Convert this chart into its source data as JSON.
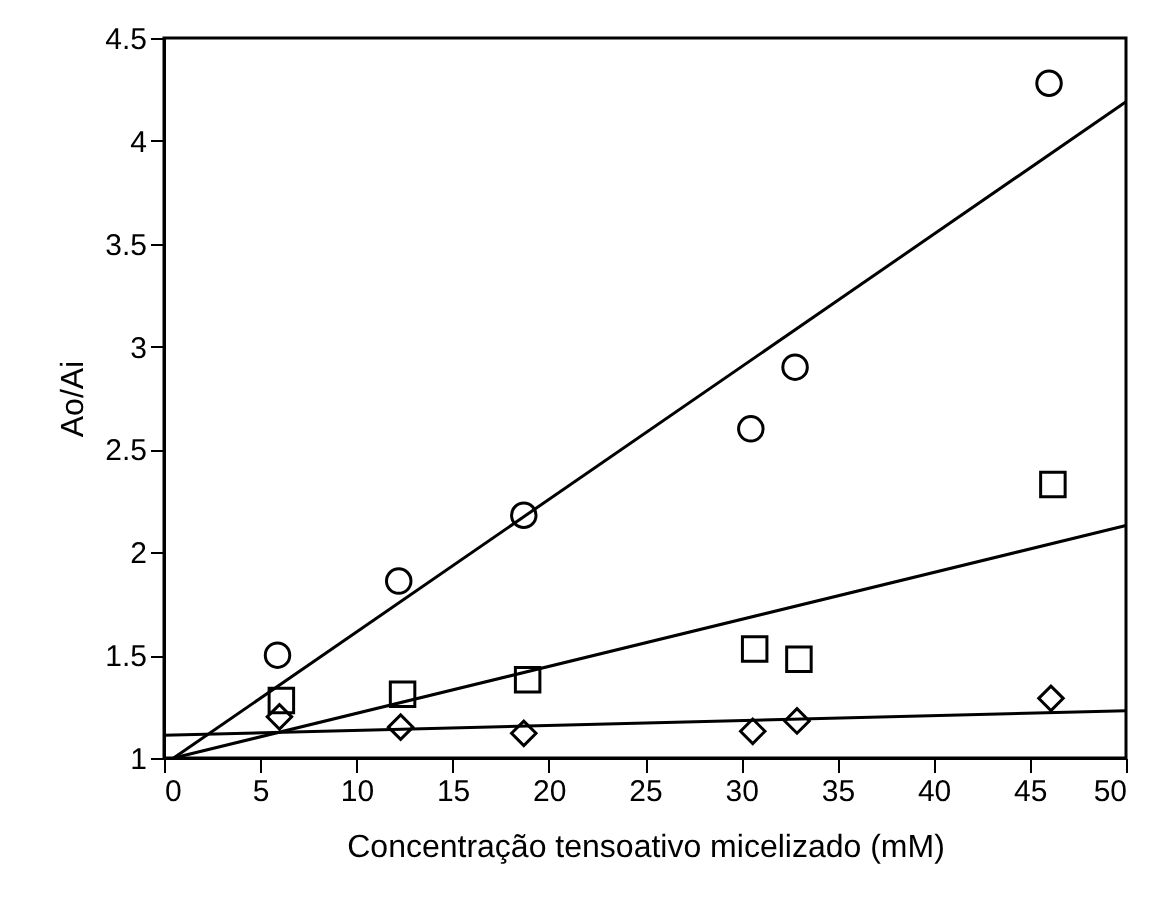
{
  "chart_data": {
    "type": "scatter",
    "xlabel": "Concentração tensoativo micelizado (mM)",
    "ylabel": "Ao/Ai",
    "xlim": [
      0,
      50
    ],
    "ylim": [
      1,
      4.5
    ],
    "xticks": [
      0,
      5,
      10,
      15,
      20,
      25,
      30,
      35,
      40,
      45,
      50
    ],
    "yticks": [
      1,
      1.5,
      2,
      2.5,
      3,
      3.5,
      4,
      4.5
    ],
    "grid": false,
    "series": [
      {
        "marker": "circle",
        "color": "#000000",
        "x": [
          5.9,
          12.2,
          18.7,
          30.5,
          32.8,
          46.0
        ],
        "values": [
          1.5,
          1.86,
          2.18,
          2.6,
          2.9,
          4.28
        ]
      },
      {
        "marker": "square",
        "color": "#000000",
        "x": [
          6.1,
          12.4,
          18.9,
          30.7,
          33.0,
          46.2
        ],
        "values": [
          1.28,
          1.31,
          1.38,
          1.53,
          1.48,
          2.33
        ]
      },
      {
        "marker": "diamond",
        "color": "#000000",
        "x": [
          6.0,
          12.3,
          18.7,
          30.6,
          32.9,
          46.1
        ],
        "values": [
          1.2,
          1.15,
          1.12,
          1.13,
          1.18,
          1.29
        ]
      },
      {
        "type": "line",
        "marker": "none",
        "line_style": "solid",
        "color": "#000000",
        "x": [
          0.5,
          50
        ],
        "values": [
          1.0,
          4.19
        ]
      },
      {
        "type": "line",
        "marker": "none",
        "line_style": "solid",
        "color": "#000000",
        "x": [
          0.5,
          50
        ],
        "values": [
          1.0,
          2.13
        ]
      },
      {
        "type": "line",
        "marker": "none",
        "line_style": "solid",
        "color": "#000000",
        "x": [
          0,
          50
        ],
        "values": [
          1.11,
          1.23
        ]
      }
    ]
  }
}
